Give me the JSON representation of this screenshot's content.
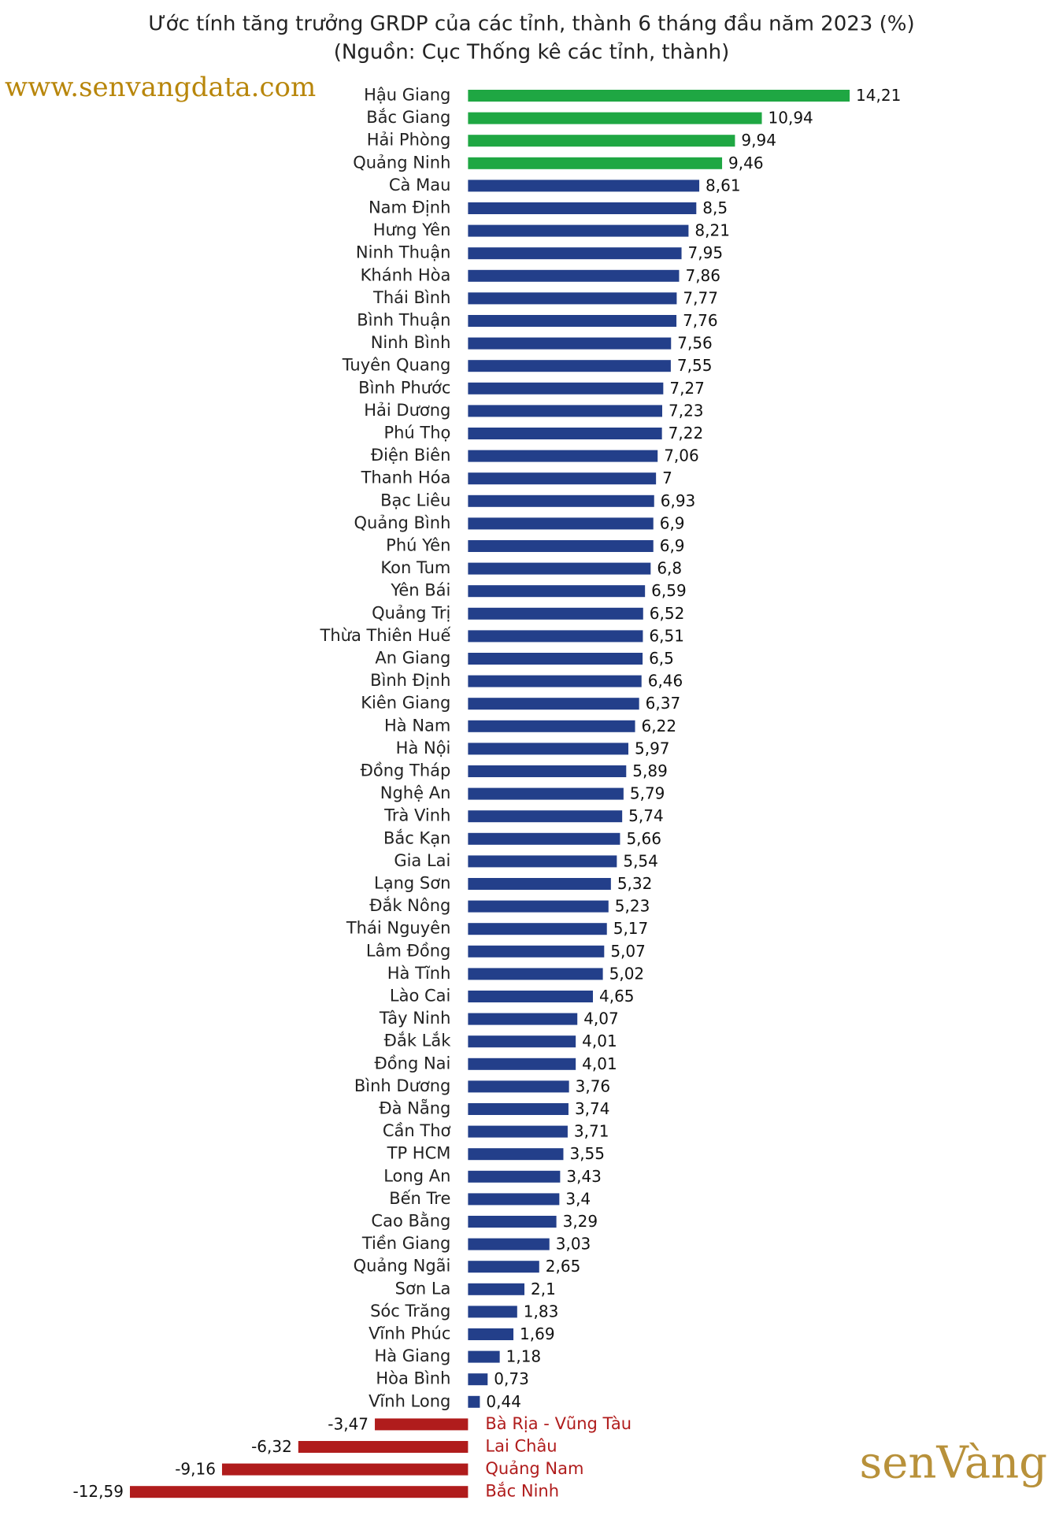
{
  "chart_data": {
    "type": "hbar",
    "title": "Ước tính tăng trưởng GRDP của các tỉnh, thành 6 tháng đầu năm 2023 (%)",
    "subtitle": "(Nguồn: Cục Thống kê các tỉnh, thành)",
    "watermark": "www.senvangdata.com",
    "logo": "senVàng",
    "categories": [
      "Hậu Giang",
      "Bắc Giang",
      "Hải Phòng",
      "Quảng Ninh",
      "Cà Mau",
      "Nam Định",
      "Hưng Yên",
      "Ninh Thuận",
      "Khánh Hòa",
      "Thái Bình",
      "Bình Thuận",
      "Ninh Bình",
      "Tuyên Quang",
      "Bình Phước",
      "Hải Dương",
      "Phú Thọ",
      "Điện Biên",
      "Thanh Hóa",
      "Bạc Liêu",
      "Quảng Bình",
      "Phú Yên",
      "Kon Tum",
      "Yên Bái",
      "Quảng Trị",
      "Thừa Thiên Huế",
      "An Giang",
      "Bình Định",
      "Kiên Giang",
      "Hà Nam",
      "Hà Nội",
      "Đồng Tháp",
      "Nghệ An",
      "Trà Vinh",
      "Bắc Kạn",
      "Gia Lai",
      "Lạng Sơn",
      "Đắk Nông",
      "Thái Nguyên",
      "Lâm Đồng",
      "Hà Tĩnh",
      "Lào Cai",
      "Tây Ninh",
      "Đắk Lắk",
      "Đồng Nai",
      "Bình Dương",
      "Đà Nẵng",
      "Cần Thơ",
      "TP HCM",
      "Long An",
      "Bến Tre",
      "Cao Bằng",
      "Tiền Giang",
      "Quảng Ngãi",
      "Sơn La",
      "Sóc Trăng",
      "Vĩnh Phúc",
      "Hà Giang",
      "Hòa Bình",
      "Vĩnh Long",
      "Bà Rịa - Vũng Tàu",
      "Lai Châu",
      "Quảng Nam",
      "Bắc Ninh"
    ],
    "values": [
      14.21,
      10.94,
      9.94,
      9.46,
      8.61,
      8.5,
      8.21,
      7.95,
      7.86,
      7.77,
      7.76,
      7.56,
      7.55,
      7.27,
      7.23,
      7.22,
      7.06,
      7,
      6.93,
      6.9,
      6.9,
      6.8,
      6.59,
      6.52,
      6.51,
      6.5,
      6.46,
      6.37,
      6.22,
      5.97,
      5.89,
      5.79,
      5.74,
      5.66,
      5.54,
      5.32,
      5.23,
      5.17,
      5.07,
      5.02,
      4.65,
      4.07,
      4.01,
      4.01,
      3.76,
      3.74,
      3.71,
      3.55,
      3.43,
      3.4,
      3.29,
      3.03,
      2.65,
      2.1,
      1.83,
      1.69,
      1.18,
      0.73,
      0.44,
      -3.47,
      -6.32,
      -9.16,
      -12.59
    ],
    "value_labels": [
      "14,21",
      "10,94",
      "9,94",
      "9,46",
      "8,61",
      "8,5",
      "8,21",
      "7,95",
      "7,86",
      "7,77",
      "7,76",
      "7,56",
      "7,55",
      "7,27",
      "7,23",
      "7,22",
      "7,06",
      "7",
      "6,93",
      "6,9",
      "6,9",
      "6,8",
      "6,59",
      "6,52",
      "6,51",
      "6,5",
      "6,46",
      "6,37",
      "6,22",
      "5,97",
      "5,89",
      "5,79",
      "5,74",
      "5,66",
      "5,54",
      "5,32",
      "5,23",
      "5,17",
      "5,07",
      "5,02",
      "4,65",
      "4,07",
      "4,01",
      "4,01",
      "3,76",
      "3,74",
      "3,71",
      "3,55",
      "3,43",
      "3,4",
      "3,29",
      "3,03",
      "2,65",
      "2,1",
      "1,83",
      "1,69",
      "1,18",
      "0,73",
      "0,44",
      "-3,47",
      "-6,32",
      "-9,16",
      "-12,59"
    ],
    "colors": [
      "#1fa743",
      "#1fa743",
      "#1fa743",
      "#1fa743",
      "#233f8a",
      "#233f8a",
      "#233f8a",
      "#233f8a",
      "#233f8a",
      "#233f8a",
      "#233f8a",
      "#233f8a",
      "#233f8a",
      "#233f8a",
      "#233f8a",
      "#233f8a",
      "#233f8a",
      "#233f8a",
      "#233f8a",
      "#233f8a",
      "#233f8a",
      "#233f8a",
      "#233f8a",
      "#233f8a",
      "#233f8a",
      "#233f8a",
      "#233f8a",
      "#233f8a",
      "#233f8a",
      "#233f8a",
      "#233f8a",
      "#233f8a",
      "#233f8a",
      "#233f8a",
      "#233f8a",
      "#233f8a",
      "#233f8a",
      "#233f8a",
      "#233f8a",
      "#233f8a",
      "#233f8a",
      "#233f8a",
      "#233f8a",
      "#233f8a",
      "#233f8a",
      "#233f8a",
      "#233f8a",
      "#233f8a",
      "#233f8a",
      "#233f8a",
      "#233f8a",
      "#233f8a",
      "#233f8a",
      "#233f8a",
      "#233f8a",
      "#233f8a",
      "#233f8a",
      "#233f8a",
      "#233f8a",
      "#b01c1c",
      "#b01c1c",
      "#b01c1c",
      "#b01c1c"
    ],
    "xlim": [
      -13,
      15
    ]
  }
}
